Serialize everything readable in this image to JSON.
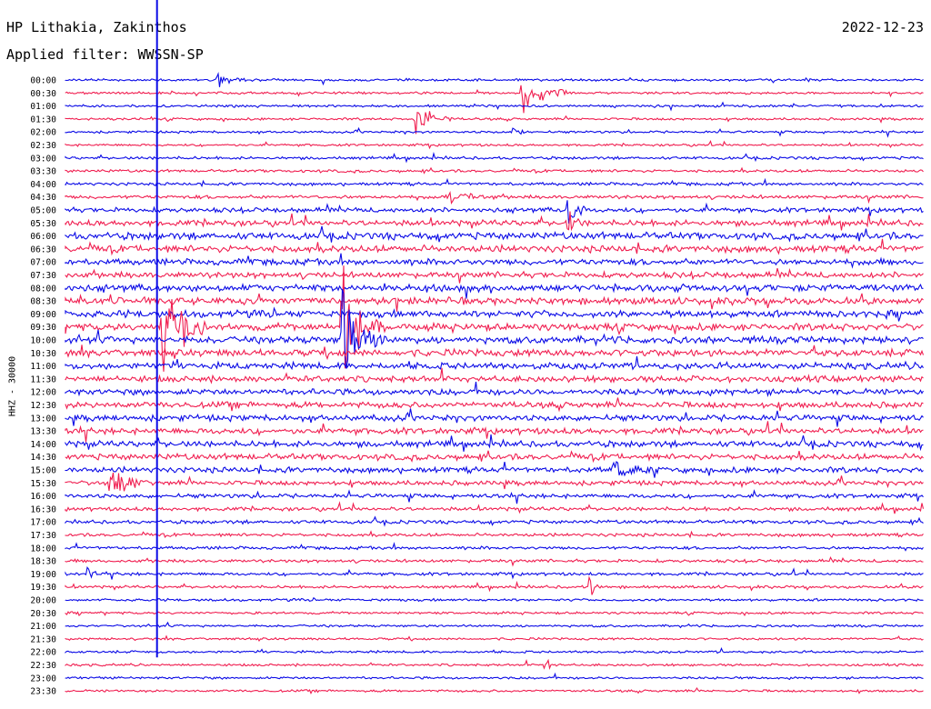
{
  "header": {
    "station": "HP Lithakia, Zakinthos",
    "date": "2022-12-23",
    "filter_text": "Applied filter: WWSSN-SP"
  },
  "channel_label": "HHZ - 30000",
  "colors": {
    "blue": "#0a0ae6",
    "red": "#f01e50"
  },
  "chart_data": {
    "type": "line",
    "title": "HP Lithakia, Zakinthos",
    "x_unit": "minutes within each 30-minute line",
    "x_range": [
      0,
      30
    ],
    "row_labels": [
      "00:00",
      "00:30",
      "01:00",
      "01:30",
      "02:00",
      "02:30",
      "03:00",
      "03:30",
      "04:00",
      "04:30",
      "05:00",
      "05:30",
      "06:00",
      "06:30",
      "07:00",
      "07:30",
      "08:00",
      "08:30",
      "09:00",
      "09:30",
      "10:00",
      "10:30",
      "11:00",
      "11:30",
      "12:00",
      "12:30",
      "13:00",
      "13:30",
      "14:00",
      "14:30",
      "15:00",
      "15:30",
      "16:00",
      "16:30",
      "17:00",
      "17:30",
      "18:00",
      "18:30",
      "19:00",
      "19:30",
      "20:00",
      "20:30",
      "21:00",
      "21:30",
      "22:00",
      "22:30",
      "23:00",
      "23:30"
    ],
    "row_colors": [
      "blue",
      "red"
    ],
    "noise_level": [
      1,
      1,
      1,
      1,
      1,
      1,
      1.2,
      1.2,
      1.3,
      1.5,
      2,
      2.5,
      3,
      3,
      2.6,
      2.5,
      3,
      3,
      3,
      3,
      3,
      3,
      2.8,
      2.6,
      2.6,
      2.6,
      2.6,
      2.6,
      2.6,
      2.6,
      2.4,
      2,
      1.8,
      1.6,
      1.5,
      1.4,
      1.3,
      1.3,
      1.3,
      1.2,
      1.1,
      1,
      1,
      1,
      1,
      1,
      1,
      1
    ],
    "events": [
      {
        "row": 0,
        "minute": 5.3,
        "amplitude": 8,
        "duration_min": 1.2
      },
      {
        "row": 1,
        "minute": 16.0,
        "amplitude": 25,
        "duration_min": 1.5
      },
      {
        "row": 3,
        "minute": 12.3,
        "amplitude": 20,
        "duration_min": 1.2
      },
      {
        "row": 4,
        "minute": 15.7,
        "amplitude": 6,
        "duration_min": 0.5
      },
      {
        "row": 9,
        "minute": 13.5,
        "amplitude": 5,
        "duration_min": 1.5
      },
      {
        "row": 10,
        "minute": 17.6,
        "amplitude": 35,
        "duration_min": 0.6
      },
      {
        "row": 11,
        "minute": 17.6,
        "amplitude": 10,
        "duration_min": 0.5
      },
      {
        "row": 19,
        "minute": 3.4,
        "amplitude": 60,
        "duration_min": 1.5
      },
      {
        "row": 19,
        "minute": 9.7,
        "amplitude": 60,
        "duration_min": 1.5
      },
      {
        "row": 20,
        "minute": 9.7,
        "amplitude": 50,
        "duration_min": 1.5
      },
      {
        "row": 31,
        "minute": 1.6,
        "amplitude": 15,
        "duration_min": 1.5
      },
      {
        "row": 30,
        "minute": 19.2,
        "amplitude": 10,
        "duration_min": 1.5
      },
      {
        "row": 38,
        "minute": 0.8,
        "amplitude": 6,
        "duration_min": 0.7
      },
      {
        "row": 39,
        "minute": 18.4,
        "amplitude": 8,
        "duration_min": 0.5
      },
      {
        "row": 45,
        "minute": 16.8,
        "amplitude": 7,
        "duration_min": 0.5
      }
    ],
    "spike": {
      "minute": 3.2,
      "from_row": 0,
      "to_row": 44
    }
  }
}
